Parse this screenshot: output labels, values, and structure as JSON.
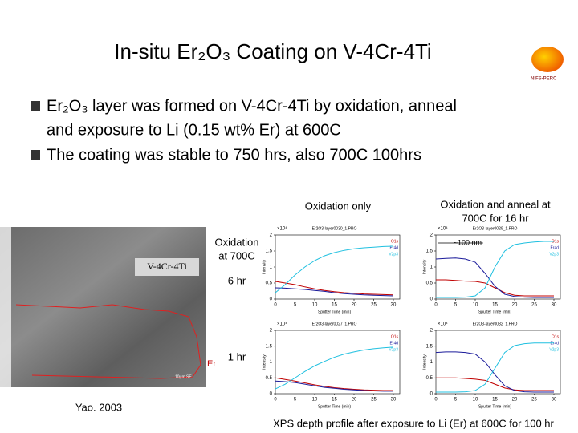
{
  "slide": {
    "title": "In-situ Er₂O₃ Coating on V-4Cr-4Ti",
    "logo": "NIFS-PERC",
    "bullets": [
      [
        "Er₂O₃ layer was formed on V-4Cr-4Ti by oxidation, anneal",
        "and exposure to Li (0.15 wt% Er) at 600C"
      ],
      [
        "The coating was stable to 750 hrs, also 700C 100hrs"
      ]
    ],
    "label_oxidation_only": "Oxidation only",
    "label_anneal": [
      "Oxidation and anneal at",
      "700C for 16 hr"
    ],
    "label_oxidation_700": [
      "Oxidation",
      "at 700C"
    ],
    "label_6hr": "6 hr",
    "label_1hr": "1 hr",
    "image_label": "V-4Cr-4Ti",
    "image_er": "Er",
    "image_scale": "10μm SE",
    "credit": "Yao. 2003",
    "caption": "XPS depth profile after exposure to Li (Er) at 600C for 100 hr"
  },
  "chart_data": [
    {
      "type": "line",
      "title": "Er2O3-layer0030_1.PRO",
      "y_multiplier": "×10⁴",
      "xlabel": "Sputter Time (min)",
      "ylabel": "Intensity",
      "x": [
        0,
        2.5,
        5,
        7.5,
        10,
        12.5,
        15,
        17.5,
        20,
        22.5,
        25,
        27.5,
        30
      ],
      "xlim": [
        0,
        30
      ],
      "xticks": [
        0,
        5,
        10,
        15,
        20,
        25,
        30
      ],
      "ylim": [
        0,
        2
      ],
      "yticks": [
        0,
        0.5,
        1,
        1.5,
        2
      ],
      "series": [
        {
          "name": "O1s",
          "color": "#c00000",
          "values": [
            0.55,
            0.5,
            0.45,
            0.38,
            0.32,
            0.27,
            0.23,
            0.2,
            0.18,
            0.16,
            0.15,
            0.14,
            0.13
          ]
        },
        {
          "name": "Er4d",
          "color": "#1a1a9a",
          "values": [
            0.35,
            0.34,
            0.32,
            0.3,
            0.27,
            0.24,
            0.2,
            0.17,
            0.15,
            0.13,
            0.12,
            0.11,
            0.1
          ]
        },
        {
          "name": "V2p3",
          "color": "#20c0e0",
          "values": [
            0.2,
            0.45,
            0.75,
            1.0,
            1.2,
            1.35,
            1.45,
            1.52,
            1.57,
            1.6,
            1.62,
            1.64,
            1.65
          ]
        }
      ]
    },
    {
      "type": "line",
      "title": "Er2O3-layer0029_1.PRO",
      "y_multiplier": "×10⁴",
      "xlabel": "Sputter Time (min)",
      "ylabel": "Intensity",
      "annotation": "~100 nm",
      "x": [
        0,
        2.5,
        5,
        7.5,
        10,
        12.5,
        15,
        17.5,
        20,
        22.5,
        25,
        27.5,
        30
      ],
      "xlim": [
        0,
        30
      ],
      "xticks": [
        0,
        5,
        10,
        15,
        20,
        25,
        30
      ],
      "ylim": [
        0,
        2
      ],
      "yticks": [
        0,
        0.5,
        1,
        1.5,
        2
      ],
      "series": [
        {
          "name": "O1s",
          "color": "#c00000",
          "values": [
            0.6,
            0.6,
            0.58,
            0.56,
            0.55,
            0.5,
            0.35,
            0.2,
            0.12,
            0.1,
            0.1,
            0.1,
            0.1
          ]
        },
        {
          "name": "Er4d",
          "color": "#1a1a9a",
          "values": [
            1.25,
            1.27,
            1.28,
            1.25,
            1.15,
            0.8,
            0.4,
            0.15,
            0.08,
            0.06,
            0.05,
            0.05,
            0.05
          ]
        },
        {
          "name": "V2p3",
          "color": "#20c0e0",
          "values": [
            0.05,
            0.05,
            0.05,
            0.06,
            0.1,
            0.35,
            1.0,
            1.5,
            1.7,
            1.75,
            1.78,
            1.8,
            1.8
          ]
        }
      ]
    },
    {
      "type": "line",
      "title": "Er2O3-layer0027_1.PRO",
      "y_multiplier": "×10⁴",
      "xlabel": "Sputter Time (min)",
      "ylabel": "Intensity",
      "x": [
        0,
        2.5,
        5,
        7.5,
        10,
        12.5,
        15,
        17.5,
        20,
        22.5,
        25,
        27.5,
        30
      ],
      "xlim": [
        0,
        30
      ],
      "xticks": [
        0,
        5,
        10,
        15,
        20,
        25,
        30
      ],
      "ylim": [
        0,
        2
      ],
      "yticks": [
        0,
        0.5,
        1,
        1.5,
        2
      ],
      "series": [
        {
          "name": "O1s",
          "color": "#c00000",
          "values": [
            0.5,
            0.45,
            0.4,
            0.34,
            0.28,
            0.23,
            0.19,
            0.16,
            0.14,
            0.12,
            0.11,
            0.1,
            0.1
          ]
        },
        {
          "name": "Er4d",
          "color": "#1a1a9a",
          "values": [
            0.4,
            0.38,
            0.35,
            0.3,
            0.25,
            0.2,
            0.17,
            0.14,
            0.12,
            0.1,
            0.09,
            0.08,
            0.08
          ]
        },
        {
          "name": "V2p3",
          "color": "#20c0e0",
          "values": [
            0.15,
            0.3,
            0.5,
            0.7,
            0.88,
            1.02,
            1.15,
            1.25,
            1.32,
            1.38,
            1.42,
            1.45,
            1.47
          ]
        }
      ]
    },
    {
      "type": "line",
      "title": "Er2O3-layer0032_1.PRO",
      "y_multiplier": "×10⁴",
      "xlabel": "Sputter Time (min)",
      "ylabel": "Intensity",
      "x": [
        0,
        2.5,
        5,
        7.5,
        10,
        12.5,
        15,
        17.5,
        20,
        22.5,
        25,
        27.5,
        30
      ],
      "xlim": [
        0,
        30
      ],
      "xticks": [
        0,
        5,
        10,
        15,
        20,
        25,
        30
      ],
      "ylim": [
        0,
        2
      ],
      "yticks": [
        0,
        0.5,
        1,
        1.5,
        2
      ],
      "series": [
        {
          "name": "O1s",
          "color": "#c00000",
          "values": [
            0.5,
            0.5,
            0.5,
            0.48,
            0.46,
            0.42,
            0.3,
            0.18,
            0.12,
            0.1,
            0.1,
            0.1,
            0.1
          ]
        },
        {
          "name": "Er4d",
          "color": "#1a1a9a",
          "values": [
            1.3,
            1.32,
            1.32,
            1.3,
            1.25,
            1.0,
            0.6,
            0.25,
            0.1,
            0.06,
            0.05,
            0.05,
            0.05
          ]
        },
        {
          "name": "V2p3",
          "color": "#20c0e0",
          "values": [
            0.05,
            0.05,
            0.05,
            0.06,
            0.1,
            0.3,
            0.8,
            1.3,
            1.52,
            1.58,
            1.6,
            1.6,
            1.6
          ]
        }
      ]
    }
  ]
}
